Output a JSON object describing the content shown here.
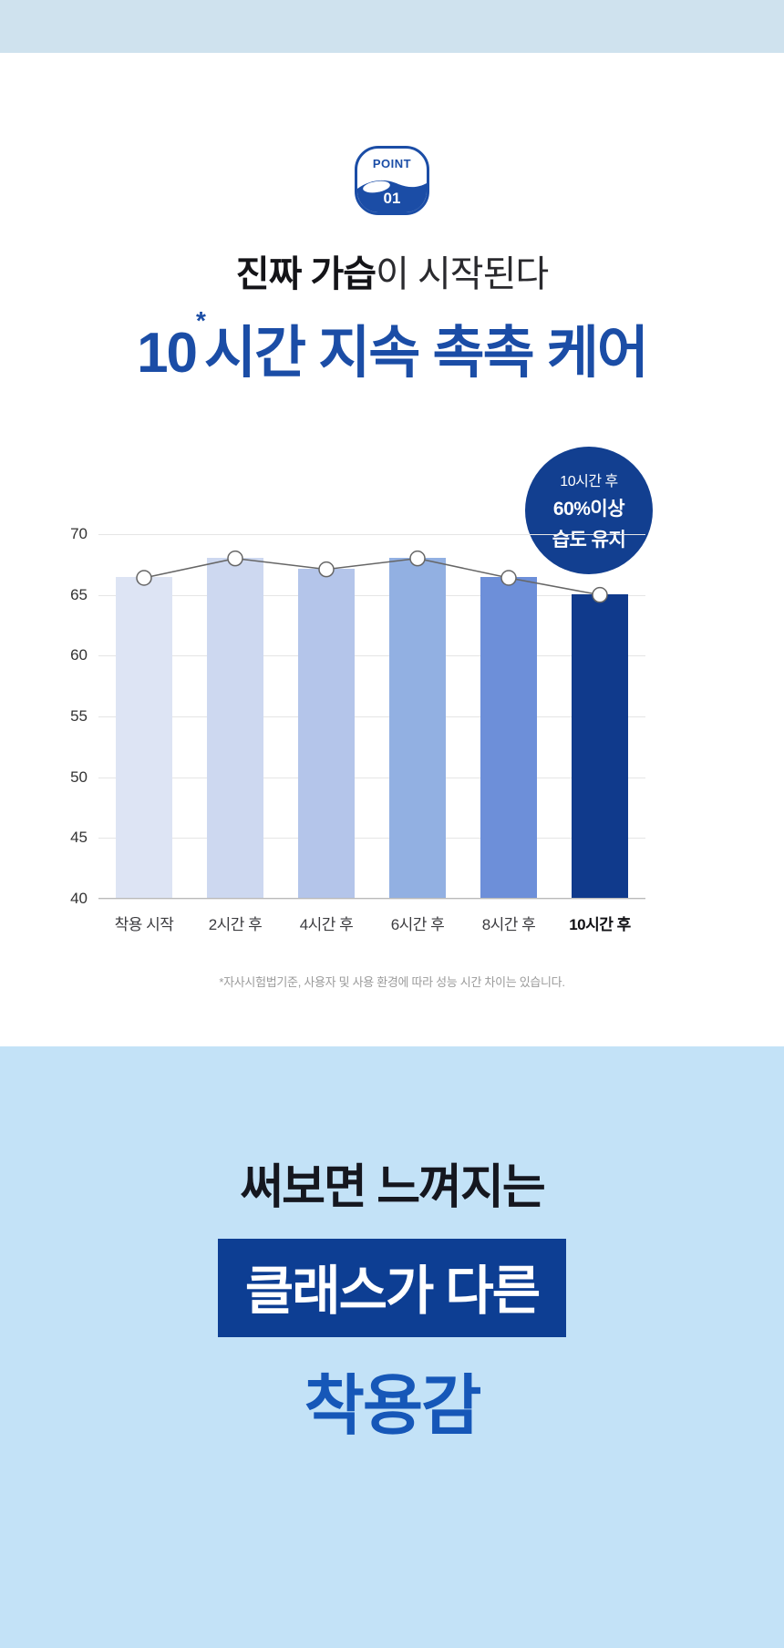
{
  "colors": {
    "top_band": "#cfe2ee",
    "bottom_bg": "#c3e2f7",
    "heading_blue": "#1b4da6",
    "navy_box": "#0d3e93",
    "badge_navy": "#123f90",
    "bottom_blue": "#1657b8"
  },
  "point_badge": {
    "label": "POINT",
    "number": "01"
  },
  "heading": {
    "line1_bold": "진짜 가습",
    "line1_rest": "이 시작된다",
    "line2_num": "10",
    "line2_star": "*",
    "line2_rest": "시간 지속 촉촉 케어"
  },
  "chart_badge": {
    "line1": "10시간 후",
    "line2": "60%이상",
    "line3": "습도 유지"
  },
  "chart_data": {
    "type": "bar",
    "title": "",
    "xlabel": "",
    "ylabel": "",
    "categories": [
      "착용 시작",
      "2시간 후",
      "4시간 후",
      "6시간 후",
      "8시간 후",
      "10시간 후"
    ],
    "values": [
      66.4,
      68,
      67.1,
      68,
      66.4,
      65
    ],
    "bar_colors": [
      "#dde4f4",
      "#cdd8f0",
      "#b4c5ea",
      "#92b0e2",
      "#6d8fd9",
      "#103a8c"
    ],
    "ylim": [
      40,
      70
    ],
    "yticks": [
      70,
      65,
      60,
      55,
      50,
      45,
      40
    ],
    "grid": true,
    "line_overlay": true,
    "line_color": "#666666",
    "marker": "white-circle",
    "legend": "none",
    "emphasized_category_index": 5
  },
  "footnote": "*자사시험법기준, 사용자 및 사용 환경에 따라 성능 시간 차이는 있습니다.",
  "bottom": {
    "line1": "써보면 느껴지는",
    "box_text": "클래스가 다른",
    "line2": "착용감"
  }
}
